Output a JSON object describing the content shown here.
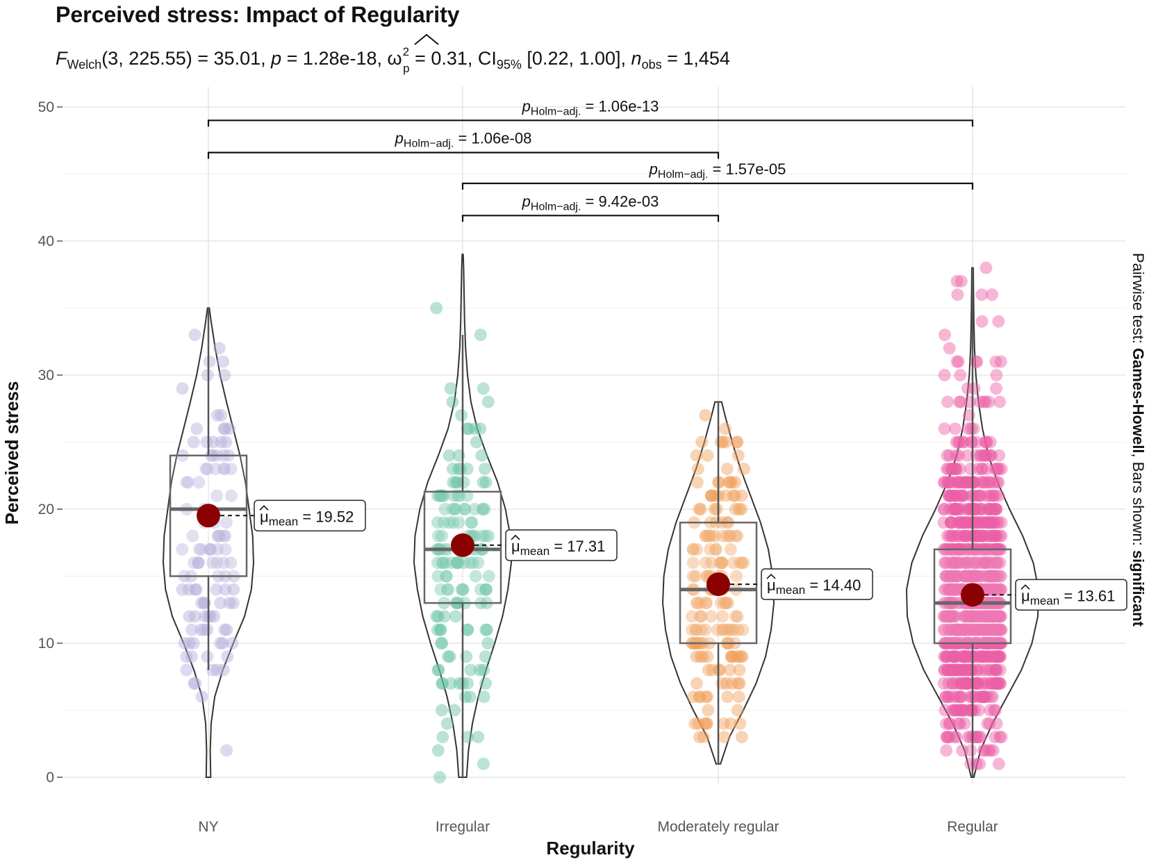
{
  "chart_data": {
    "type": "violin",
    "title": "Perceived stress: Impact of Regularity",
    "subtitle": {
      "f_symbol": "F",
      "f_sub": "Welch",
      "f_args": "(3, 225.55) = 35.01, ",
      "p_symbol": "p",
      "p_value": " = 1.28e-18, ",
      "omega_symbol": "ω",
      "omega_sup": "2",
      "omega_sub": "p",
      "omega_value": " = 0.31, CI",
      "ci_sub": "95%",
      "ci_value": " [0.22, 1.00], ",
      "n_symbol": "n",
      "n_sub": "obs",
      "n_value": " = 1,454"
    },
    "xlabel": "Regularity",
    "ylabel": "Perceived stress",
    "ylim": [
      0,
      50
    ],
    "yticks": [
      "0",
      "10",
      "20",
      "30",
      "40",
      "50"
    ],
    "caption": {
      "prefix": "Pairwise test: ",
      "bold1": "Games-Howell",
      "middle": ", Bars shown: ",
      "bold2": "significant"
    },
    "categories": [
      "NY",
      "Irregular",
      "Moderately regular",
      "Regular"
    ],
    "colors": [
      "#b2acd9",
      "#66c2a5",
      "#f0a05a",
      "#ec5fa6"
    ],
    "mean_color": "#8b0000",
    "groups": [
      {
        "name": "NY",
        "box": {
          "q1": 15,
          "median": 20,
          "q3": 24,
          "whisker_low": 8,
          "whisker_high": 35
        },
        "min": 0,
        "max": 35,
        "mean": 19.52,
        "mean_label": "19.52",
        "density": [
          [
            0,
            0.05
          ],
          [
            2,
            0.04
          ],
          [
            4,
            0.06
          ],
          [
            6,
            0.14
          ],
          [
            8,
            0.32
          ],
          [
            10,
            0.55
          ],
          [
            12,
            0.8
          ],
          [
            14,
            0.95
          ],
          [
            16,
            1.0
          ],
          [
            18,
            0.98
          ],
          [
            20,
            0.9
          ],
          [
            22,
            0.82
          ],
          [
            24,
            0.7
          ],
          [
            26,
            0.55
          ],
          [
            28,
            0.4
          ],
          [
            30,
            0.26
          ],
          [
            32,
            0.15
          ],
          [
            34,
            0.06
          ],
          [
            35,
            0.02
          ]
        ]
      },
      {
        "name": "Irregular",
        "box": {
          "q1": 13,
          "median": 17,
          "q3": 21.3,
          "whisker_low": 0,
          "whisker_high": 33
        },
        "min": 0,
        "max": 39,
        "mean": 17.31,
        "mean_label": "17.31",
        "density": [
          [
            0,
            0.08
          ],
          [
            2,
            0.12
          ],
          [
            4,
            0.2
          ],
          [
            6,
            0.32
          ],
          [
            8,
            0.48
          ],
          [
            10,
            0.66
          ],
          [
            12,
            0.82
          ],
          [
            14,
            0.93
          ],
          [
            16,
            1.0
          ],
          [
            18,
            0.98
          ],
          [
            20,
            0.88
          ],
          [
            22,
            0.72
          ],
          [
            24,
            0.5
          ],
          [
            26,
            0.3
          ],
          [
            28,
            0.17
          ],
          [
            30,
            0.1
          ],
          [
            32,
            0.06
          ],
          [
            34,
            0.04
          ],
          [
            36,
            0.03
          ],
          [
            38,
            0.02
          ],
          [
            39,
            0.01
          ]
        ]
      },
      {
        "name": "Moderately regular",
        "box": {
          "q1": 10,
          "median": 14,
          "q3": 19,
          "whisker_low": 1,
          "whisker_high": 28
        },
        "min": 1,
        "max": 28,
        "mean": 14.4,
        "mean_label": "14.40",
        "density": [
          [
            1,
            0.04
          ],
          [
            3,
            0.2
          ],
          [
            5,
            0.45
          ],
          [
            7,
            0.68
          ],
          [
            9,
            0.85
          ],
          [
            11,
            0.95
          ],
          [
            13,
            1.0
          ],
          [
            15,
            0.98
          ],
          [
            17,
            0.9
          ],
          [
            19,
            0.76
          ],
          [
            21,
            0.58
          ],
          [
            23,
            0.4
          ],
          [
            25,
            0.25
          ],
          [
            27,
            0.12
          ],
          [
            28,
            0.06
          ]
        ]
      },
      {
        "name": "Regular",
        "box": {
          "q1": 10,
          "median": 13,
          "q3": 17,
          "whisker_low": 0,
          "whisker_high": 38
        },
        "min": 0,
        "max": 38,
        "mean": 13.61,
        "mean_label": "13.61",
        "density": [
          [
            0,
            0.02
          ],
          [
            2,
            0.12
          ],
          [
            4,
            0.3
          ],
          [
            6,
            0.52
          ],
          [
            8,
            0.74
          ],
          [
            10,
            0.9
          ],
          [
            12,
            0.99
          ],
          [
            14,
            1.0
          ],
          [
            16,
            0.92
          ],
          [
            18,
            0.76
          ],
          [
            20,
            0.56
          ],
          [
            22,
            0.38
          ],
          [
            24,
            0.24
          ],
          [
            26,
            0.15
          ],
          [
            28,
            0.09
          ],
          [
            30,
            0.05
          ],
          [
            32,
            0.03
          ],
          [
            34,
            0.02
          ],
          [
            36,
            0.015
          ],
          [
            38,
            0.01
          ]
        ]
      }
    ],
    "mean_symbol": "μ",
    "mean_sub": "mean",
    "mean_eq": " = ",
    "comparisons": [
      {
        "from": 0,
        "to": 3,
        "y_level": 49,
        "p_symbol": "p",
        "p_sub": "Holm−adj.",
        "p_value": " = 1.06e-13"
      },
      {
        "from": 0,
        "to": 2,
        "y_level": 46.6,
        "p_symbol": "p",
        "p_sub": "Holm−adj.",
        "p_value": " = 1.06e-08"
      },
      {
        "from": 1,
        "to": 3,
        "y_level": 44.3,
        "p_symbol": "p",
        "p_sub": "Holm−adj.",
        "p_value": " = 1.57e-05"
      },
      {
        "from": 1,
        "to": 2,
        "y_level": 41.9,
        "p_symbol": "p",
        "p_sub": "Holm−adj.",
        "p_value": " = 9.42e-03"
      }
    ]
  }
}
